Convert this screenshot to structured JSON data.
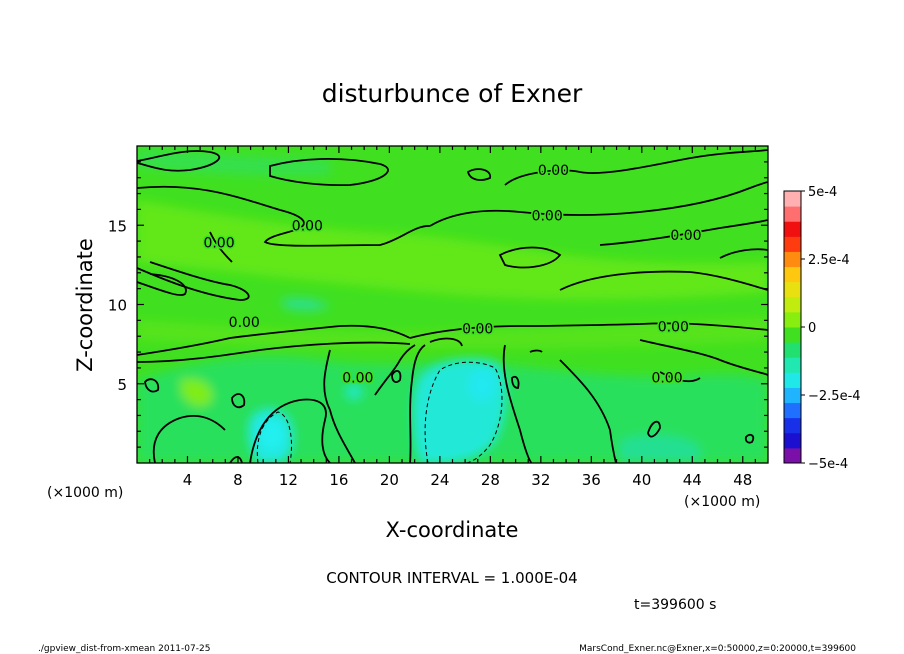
{
  "chart_data": {
    "type": "heatmap",
    "title": "disturbunce of Exner",
    "xlabel": "X-coordinate",
    "ylabel": "Z-coordinate",
    "x_unit": "(×1000 m)",
    "y_unit": "(×1000 m)",
    "xlim": [
      0,
      50
    ],
    "ylim": [
      0,
      20
    ],
    "x_ticks": [
      4,
      8,
      12,
      16,
      20,
      24,
      28,
      32,
      36,
      40,
      44,
      48
    ],
    "y_ticks": [
      5,
      10,
      15
    ],
    "colorbar": {
      "range": [
        -0.0005,
        0.0005
      ],
      "labels": [
        {
          "text": "5e-4",
          "value": 0.0005
        },
        {
          "text": "2.5e-4",
          "value": 0.00025
        },
        {
          "text": "0",
          "value": 0
        },
        {
          "text": "−2.5e-4",
          "value": -0.00025
        },
        {
          "text": "−5e-4",
          "value": -0.0005
        }
      ],
      "colors": [
        "#7a10a8",
        "#1c10d0",
        "#1830e8",
        "#2070ff",
        "#20b4ff",
        "#20e8e8",
        "#20e8b0",
        "#22e070",
        "#40e020",
        "#88ee10",
        "#c0ec10",
        "#e8e010",
        "#ffc810",
        "#ff8c10",
        "#ff3c10",
        "#f01010",
        "#ff6f6f",
        "#ffb0b0"
      ]
    },
    "contour_labels": [
      {
        "text": "0.00",
        "x": 6.5,
        "z": 13.9
      },
      {
        "text": "0.00",
        "x": 13.5,
        "z": 15.0
      },
      {
        "text": "0.00",
        "x": 33.0,
        "z": 18.5
      },
      {
        "text": "0.00",
        "x": 32.5,
        "z": 15.6
      },
      {
        "text": "0.00",
        "x": 43.5,
        "z": 14.4
      },
      {
        "text": "0.00",
        "x": 8.5,
        "z": 8.9
      },
      {
        "text": "0.00",
        "x": 27.0,
        "z": 8.5
      },
      {
        "text": "0.00",
        "x": 42.5,
        "z": 8.6
      },
      {
        "text": "0.00",
        "x": 17.5,
        "z": 5.4
      },
      {
        "text": "0.00",
        "x": 42.0,
        "z": 5.4
      }
    ],
    "contour_interval_text": "CONTOUR INTERVAL = 1.000E-04",
    "time_text": "t=399600 s",
    "footer_left": "./gpview_dist-from-xmean  2011-07-25",
    "footer_right": "MarsCond_Exner.nc@Exner,x=0:50000,z=0:20000,t=399600"
  }
}
